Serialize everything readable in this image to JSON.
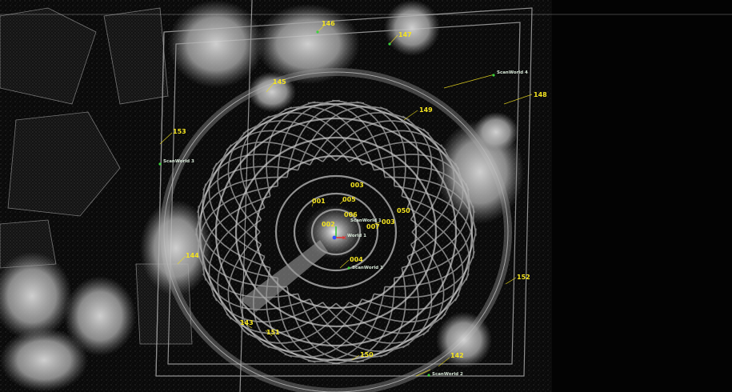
{
  "viewer": {
    "background": "#050505",
    "point_color": "#c8c8c8",
    "label_color": "#f3e321",
    "scan_label_color": "#d8e8d8"
  },
  "target_labels": {
    "t146": "146",
    "t147": "147",
    "t145": "145",
    "t148": "148",
    "t149": "149",
    "t153": "153",
    "t003": "003",
    "t001": "001",
    "t005": "005",
    "t006": "006",
    "t050": "050",
    "t003b": "003",
    "t007": "007",
    "t002": "002",
    "t004": "004",
    "t144": "144",
    "t152": "152",
    "t143": "143",
    "t151": "151",
    "t150": "150",
    "t142": "142"
  },
  "scan_labels": {
    "s_top_right": "ScanWorld 4",
    "s_left": "ScanWorld 3",
    "s_center": "ScanWorld 1",
    "s_world": "World 1",
    "s_center_low": "ScanWorld 1",
    "s_bottom": "ScanWorld 2"
  }
}
